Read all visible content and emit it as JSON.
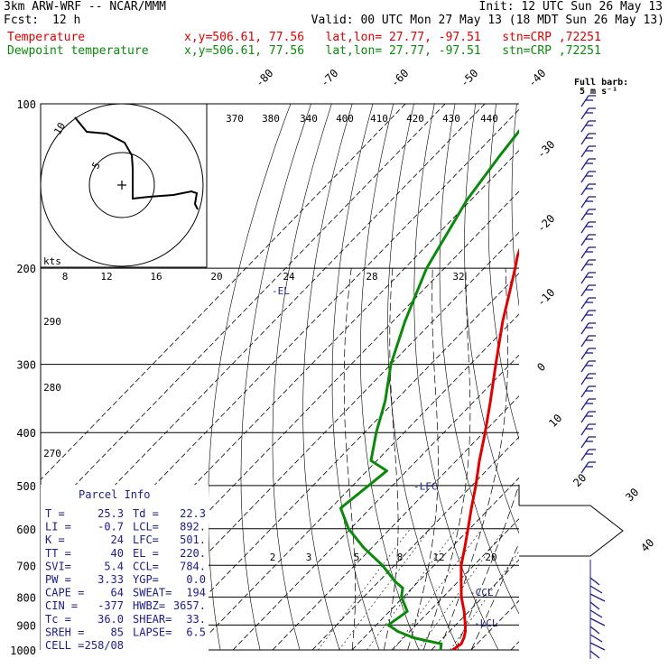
{
  "header": {
    "model": "3km ARW-WRF -- NCAR/MMM",
    "init": "Init: 12 UTC Sun 26 May 13",
    "fcst_label": "Fcst:",
    "fcst_hours": "12 h",
    "valid": "Valid: 00 UTC Mon 27 May 13 (18 MDT Sun 26 May 13)"
  },
  "legend": {
    "temperature_label": "Temperature",
    "dewpoint_label": "Dewpoint temperature",
    "temperature_info": "x,y=506.61, 77.56   lat,lon= 27.77, -97.51   stn=CRP ,72251",
    "dewpoint_info": "x,y=506.61, 77.56   lat,lon= 27.77, -97.51   stn=CRP ,72251",
    "temperature_color": "#e00000",
    "dewpoint_color": "#0a8a0a"
  },
  "wind_barb_legend": {
    "title": "Full barb:",
    "value": "5 m s⁻¹"
  },
  "hodograph": {
    "unit_label": "kts",
    "ring_labels": [
      "10",
      "5"
    ]
  },
  "parcel_info": {
    "title": "Parcel Info",
    "rows": [
      [
        "T  =",
        "25.3",
        "Td =",
        "22.3"
      ],
      [
        "LI =",
        "-0.7",
        "LCL=",
        "892."
      ],
      [
        "K  =",
        "24",
        "LFC=",
        "501."
      ],
      [
        "TT =",
        "40",
        "EL =",
        "220."
      ],
      [
        "SVI=",
        "5.4",
        "CCL=",
        "784."
      ],
      [
        "PW =",
        "3.33",
        "YGP=",
        "0.0"
      ],
      [
        "CAPE =",
        "64",
        "SWEAT=",
        "194"
      ],
      [
        "CIN =",
        "-377",
        "HWBZ=",
        "3657."
      ],
      [
        "Tc =",
        "36.0",
        "SHEAR=",
        "33."
      ],
      [
        "SREH =",
        "85",
        "LAPSE=",
        "6.5"
      ],
      [
        "CELL =",
        "258/08",
        "",
        ""
      ]
    ]
  },
  "chart_data": {
    "type": "line",
    "title": "Skew-T log-p sounding",
    "y_axis": {
      "label": "",
      "scale": "log",
      "units": "hPa",
      "ylim": [
        1000,
        100
      ],
      "ticks": [
        100,
        200,
        300,
        400,
        500,
        600,
        700,
        800,
        900,
        1000
      ]
    },
    "isotherm_labels": [
      "-80",
      "-70",
      "-60",
      "-50",
      "-40",
      "-30",
      "-20",
      "-10",
      "0",
      "10",
      "20",
      "30",
      "40"
    ],
    "dry_adiabat_labels": [
      "370",
      "380",
      "340",
      "400",
      "410",
      "420",
      "430",
      "440"
    ],
    "dry_adiabat_left_labels": [
      "290",
      "280",
      "270"
    ],
    "mixing_ratio_labels_top": [
      "8",
      "12",
      "16",
      "20",
      "24",
      "28",
      "32"
    ],
    "mixing_ratio_labels_low": [
      "2",
      "3",
      "5",
      "8",
      "12",
      "20"
    ],
    "level_markers": [
      {
        "name": "EL",
        "text": "-EL",
        "pressure_hpa": 220
      },
      {
        "name": "LFC",
        "text": "-LFC",
        "pressure_hpa": 501
      },
      {
        "name": "CCL",
        "text": "-CCL",
        "pressure_hpa": 784
      },
      {
        "name": "LCL",
        "text": "-LCL",
        "pressure_hpa": 892
      }
    ],
    "series": [
      {
        "name": "Temperature",
        "color": "#e00000",
        "points": [
          [
            1000,
            25.3
          ],
          [
            975,
            26.0
          ],
          [
            950,
            25.2
          ],
          [
            925,
            24.0
          ],
          [
            900,
            22.4
          ],
          [
            850,
            18.8
          ],
          [
            800,
            14.6
          ],
          [
            750,
            10.8
          ],
          [
            700,
            6.8
          ],
          [
            650,
            3.4
          ],
          [
            600,
            -0.4
          ],
          [
            550,
            -4.6
          ],
          [
            500,
            -9.0
          ],
          [
            450,
            -14.2
          ],
          [
            400,
            -19.6
          ],
          [
            350,
            -26.0
          ],
          [
            300,
            -33.6
          ],
          [
            250,
            -42.4
          ],
          [
            220,
            -48.0
          ],
          [
            200,
            -52.2
          ],
          [
            190,
            -54.6
          ],
          [
            170,
            -58.6
          ],
          [
            150,
            -63.4
          ],
          [
            125,
            -68.6
          ],
          [
            100,
            -72.8
          ]
        ]
      },
      {
        "name": "Dewpoint temperature",
        "color": "#0a8a0a",
        "points": [
          [
            1000,
            22.3
          ],
          [
            975,
            21.0
          ],
          [
            950,
            12.5
          ],
          [
            925,
            7.0
          ],
          [
            900,
            3.0
          ],
          [
            850,
            4.5
          ],
          [
            800,
            -0.5
          ],
          [
            770,
            -2.4
          ],
          [
            750,
            -5.8
          ],
          [
            700,
            -13.0
          ],
          [
            650,
            -22.0
          ],
          [
            600,
            -30.5
          ],
          [
            550,
            -37.5
          ],
          [
            500,
            -36.0
          ],
          [
            470,
            -35.0
          ],
          [
            450,
            -41.5
          ],
          [
            400,
            -47.0
          ],
          [
            350,
            -52.5
          ],
          [
            300,
            -60.0
          ],
          [
            250,
            -67.0
          ],
          [
            200,
            -74.5
          ],
          [
            150,
            -81.0
          ],
          [
            125,
            -83.5
          ],
          [
            100,
            -86.0
          ]
        ]
      }
    ]
  }
}
